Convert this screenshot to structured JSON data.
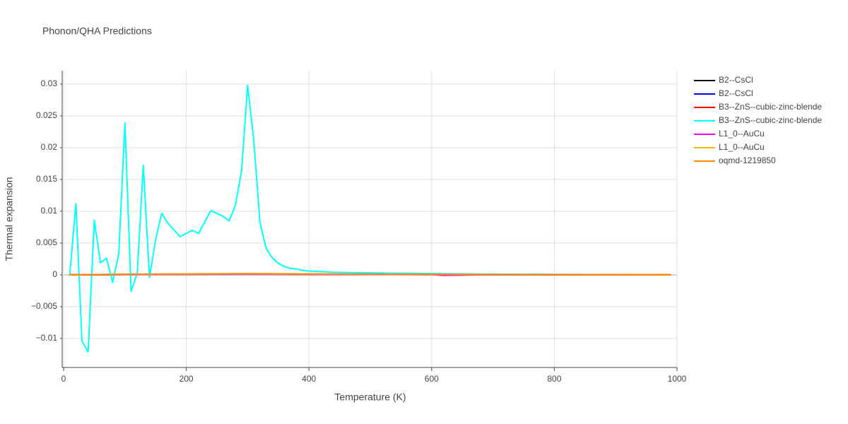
{
  "chart_data": {
    "type": "line",
    "title": "Phonon/QHA Predictions",
    "xlabel": "Temperature (K)",
    "ylabel": "Thermal expansion",
    "xlim": [
      0,
      1000
    ],
    "xticks": [
      0,
      200,
      400,
      600,
      800,
      1000
    ],
    "ylim": [
      -0.01456,
      0.0321
    ],
    "yticks": [
      {
        "value": -0.01,
        "label": "−0.01"
      },
      {
        "value": -0.005,
        "label": "−0.005"
      },
      0,
      0.005,
      0.01,
      0.015,
      0.02,
      0.025,
      0.03
    ],
    "grid": true,
    "legend": "right",
    "series": [
      {
        "name": "B2--CsCl",
        "color": "#000000",
        "x": [
          10,
          100,
          200,
          300,
          400,
          500,
          600,
          700,
          800,
          900,
          990
        ],
        "values": [
          0,
          5e-05,
          8e-05,
          0.0001,
          8e-05,
          6e-05,
          5e-05,
          4e-05,
          3e-05,
          3e-05,
          2e-05
        ]
      },
      {
        "name": "B2--CsCl",
        "color": "#0000ff",
        "x": [
          10,
          100,
          200,
          300,
          400,
          500,
          600,
          700,
          800,
          900,
          990
        ],
        "values": [
          0,
          4e-05,
          7e-05,
          9e-05,
          7e-05,
          5e-05,
          4e-05,
          3e-05,
          3e-05,
          2e-05,
          2e-05
        ]
      },
      {
        "name": "B3--ZnS--cubic-zinc-blende",
        "color": "#ff0000",
        "x": [
          10,
          100,
          200,
          300,
          400,
          500,
          600,
          700,
          800,
          900,
          990
        ],
        "values": [
          0,
          6e-05,
          0.0001,
          0.00012,
          0.0001,
          8e-05,
          6e-05,
          5e-05,
          4e-05,
          3e-05,
          3e-05
        ]
      },
      {
        "name": "B3--ZnS--cubic-zinc-blende",
        "color": "#00ffff",
        "x": [
          10,
          20,
          30,
          40,
          50,
          60,
          70,
          80,
          90,
          100,
          110,
          120,
          130,
          140,
          150,
          160,
          170,
          190,
          210,
          220,
          240,
          260,
          270,
          280,
          290,
          300,
          310,
          320,
          330,
          340,
          350,
          360,
          370,
          380,
          390,
          400,
          420,
          440,
          500,
          600,
          700,
          800,
          900,
          990
        ],
        "values": [
          0,
          0.0112,
          -0.0104,
          -0.0121,
          0.0086,
          0.0019,
          0.0026,
          -0.0012,
          0.0033,
          0.0239,
          -0.0026,
          0.0003,
          0.0172,
          -0.0004,
          0.0055,
          0.0097,
          0.0081,
          0.006,
          0.007,
          0.0065,
          0.0101,
          0.0092,
          0.0085,
          0.0109,
          0.0162,
          0.0298,
          0.0212,
          0.0083,
          0.0042,
          0.0027,
          0.0018,
          0.0013,
          0.001,
          0.0009,
          0.0007,
          0.0006,
          0.0005,
          0.0004,
          0.0003,
          0.0002,
          0.0001,
          8e-05,
          5e-05,
          3e-05
        ]
      },
      {
        "name": "L1_0--AuCu",
        "color": "#ff00ff",
        "x": [
          10,
          100,
          200,
          300,
          400,
          500,
          600,
          620,
          700,
          800,
          900,
          990
        ],
        "values": [
          0,
          5e-05,
          8e-05,
          0.0001,
          8e-05,
          6e-05,
          4e-05,
          -0.0001,
          4e-05,
          3e-05,
          2e-05,
          2e-05
        ]
      },
      {
        "name": "L1_0--AuCu",
        "color": "#ffb300",
        "x": [
          10,
          100,
          200,
          300,
          400,
          500,
          600,
          700,
          800,
          900,
          990
        ],
        "values": [
          0,
          8e-05,
          0.00012,
          0.00015,
          0.00012,
          9e-05,
          7e-05,
          5e-05,
          4e-05,
          3e-05,
          3e-05
        ]
      },
      {
        "name": "oqmd-1219850",
        "color": "#ff8c00",
        "x": [
          10,
          100,
          200,
          300,
          400,
          500,
          600,
          700,
          800,
          900,
          990
        ],
        "values": [
          0,
          0.0001,
          0.00015,
          0.0002,
          0.00015,
          0.0001,
          8e-05,
          6e-05,
          5e-05,
          4e-05,
          3e-05
        ]
      }
    ]
  }
}
